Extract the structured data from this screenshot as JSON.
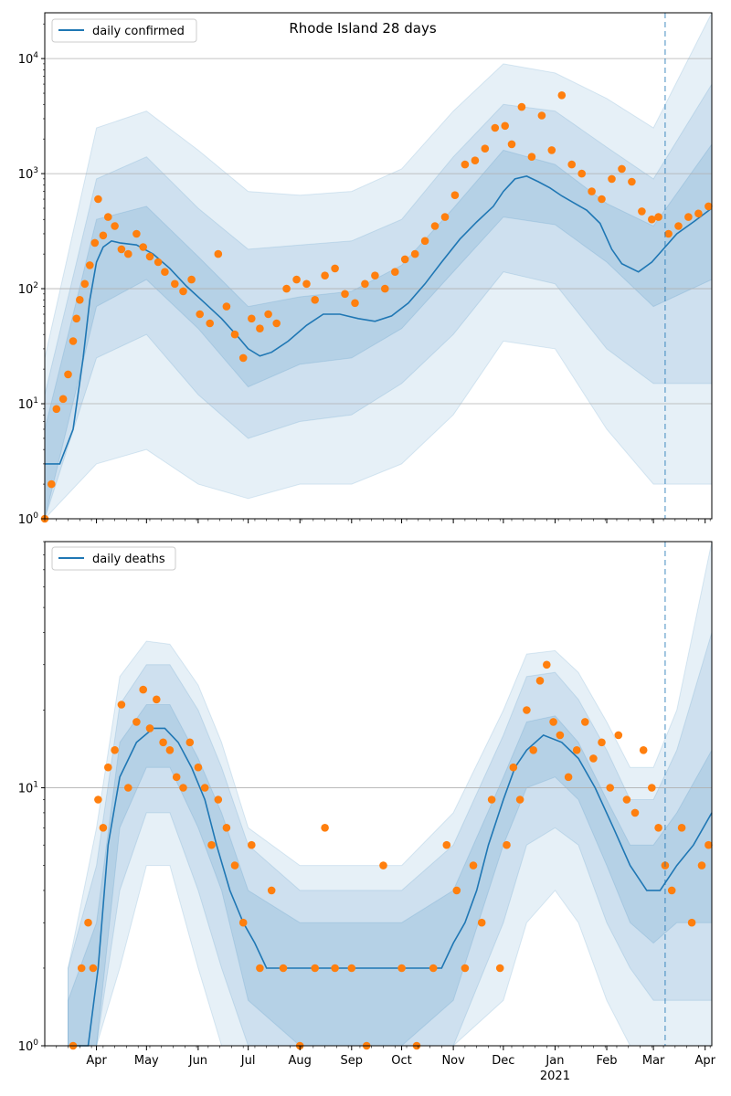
{
  "colors": {
    "line": "#1f77b4",
    "band": "#1f77b4",
    "points": "#ff7f0e",
    "grid": "#b0b0b0",
    "vline": "#1f77b4"
  },
  "chart_data": [
    {
      "type": "line",
      "title": "Rhode Island 28 days",
      "yscale": "log",
      "ylim": [
        1,
        25000
      ],
      "ytick_labels": [
        "10^0",
        "10^1",
        "10^2",
        "10^3",
        "10^4"
      ],
      "xlim": [
        "2020-03-01",
        "2021-04-05"
      ],
      "grid": "horizontal major",
      "legend": {
        "placement": "top-left",
        "entries": [
          "daily confirmed"
        ]
      },
      "forecast_start": "2021-03-08",
      "series": [
        {
          "name": "daily confirmed",
          "kind": "fitted line",
          "x": [
            "2020-03-01",
            "2020-03-10",
            "2020-03-18",
            "2020-03-24",
            "2020-03-28",
            "2020-04-01",
            "2020-04-05",
            "2020-04-10",
            "2020-04-15",
            "2020-04-25",
            "2020-05-05",
            "2020-05-15",
            "2020-05-25",
            "2020-06-05",
            "2020-06-15",
            "2020-06-25",
            "2020-07-01",
            "2020-07-08",
            "2020-07-15",
            "2020-07-25",
            "2020-08-05",
            "2020-08-15",
            "2020-08-25",
            "2020-09-05",
            "2020-09-15",
            "2020-09-25",
            "2020-10-05",
            "2020-10-15",
            "2020-10-25",
            "2020-11-05",
            "2020-11-15",
            "2020-11-25",
            "2020-12-01",
            "2020-12-08",
            "2020-12-15",
            "2020-12-22",
            "2020-12-29",
            "2021-01-05",
            "2021-01-12",
            "2021-01-20",
            "2021-01-28",
            "2021-02-04",
            "2021-02-10",
            "2021-02-20",
            "2021-02-28",
            "2021-03-08",
            "2021-03-15",
            "2021-03-25",
            "2021-04-05"
          ],
          "y": [
            3,
            3,
            6,
            25,
            80,
            170,
            230,
            260,
            250,
            240,
            200,
            150,
            105,
            75,
            55,
            38,
            30,
            26,
            28,
            35,
            48,
            60,
            60,
            55,
            52,
            58,
            75,
            110,
            170,
            270,
            380,
            520,
            700,
            900,
            950,
            850,
            750,
            640,
            560,
            480,
            370,
            220,
            165,
            140,
            170,
            230,
            300,
            380,
            500
          ]
        },
        {
          "name": "daily confirmed (observed)",
          "kind": "scatter",
          "x": [
            "2020-03-01",
            "2020-03-05",
            "2020-03-08",
            "2020-03-12",
            "2020-03-15",
            "2020-03-18",
            "2020-03-20",
            "2020-03-22",
            "2020-03-25",
            "2020-03-28",
            "2020-03-31",
            "2020-04-02",
            "2020-04-05",
            "2020-04-08",
            "2020-04-12",
            "2020-04-16",
            "2020-04-20",
            "2020-04-25",
            "2020-04-29",
            "2020-05-03",
            "2020-05-08",
            "2020-05-12",
            "2020-05-18",
            "2020-05-23",
            "2020-05-28",
            "2020-06-02",
            "2020-06-08",
            "2020-06-13",
            "2020-06-18",
            "2020-06-23",
            "2020-06-28",
            "2020-07-03",
            "2020-07-08",
            "2020-07-13",
            "2020-07-18",
            "2020-07-24",
            "2020-07-30",
            "2020-08-05",
            "2020-08-10",
            "2020-08-16",
            "2020-08-22",
            "2020-08-28",
            "2020-09-03",
            "2020-09-09",
            "2020-09-15",
            "2020-09-21",
            "2020-09-27",
            "2020-10-03",
            "2020-10-09",
            "2020-10-15",
            "2020-10-21",
            "2020-10-27",
            "2020-11-02",
            "2020-11-08",
            "2020-11-14",
            "2020-11-20",
            "2020-11-26",
            "2020-12-02",
            "2020-12-06",
            "2020-12-12",
            "2020-12-18",
            "2020-12-24",
            "2020-12-30",
            "2021-01-05",
            "2021-01-11",
            "2021-01-17",
            "2021-01-23",
            "2021-01-29",
            "2021-02-04",
            "2021-02-10",
            "2021-02-16",
            "2021-02-22",
            "2021-02-28",
            "2021-03-04",
            "2021-03-10",
            "2021-03-16",
            "2021-03-22",
            "2021-03-28",
            "2021-04-03"
          ],
          "y": [
            1,
            2,
            9,
            11,
            18,
            35,
            55,
            80,
            110,
            160,
            250,
            600,
            290,
            420,
            350,
            220,
            200,
            300,
            230,
            190,
            170,
            140,
            110,
            95,
            120,
            60,
            50,
            200,
            70,
            40,
            25,
            55,
            45,
            60,
            50,
            100,
            120,
            110,
            80,
            130,
            150,
            90,
            75,
            110,
            130,
            100,
            140,
            180,
            200,
            260,
            350,
            420,
            650,
            1200,
            1300,
            1650,
            2500,
            2600,
            1800,
            3800,
            1400,
            3200,
            1600,
            4800,
            1200,
            1000,
            700,
            600,
            900,
            1100,
            850,
            470,
            400,
            420,
            300,
            350,
            420,
            450,
            520
          ]
        }
      ],
      "bands": [
        {
          "name": "inner",
          "x": [
            "2020-03-01",
            "2020-04-01",
            "2020-05-01",
            "2020-06-01",
            "2020-07-01",
            "2020-08-01",
            "2020-09-01",
            "2020-10-01",
            "2020-11-01",
            "2020-12-01",
            "2021-01-01",
            "2021-02-01",
            "2021-03-01",
            "2021-04-05"
          ],
          "low": [
            1,
            70,
            120,
            45,
            14,
            22,
            25,
            45,
            140,
            420,
            360,
            170,
            70,
            120
          ],
          "high": [
            6,
            400,
            520,
            190,
            70,
            85,
            95,
            160,
            500,
            1600,
            1200,
            550,
            350,
            1800
          ]
        },
        {
          "name": "middle",
          "x": [
            "2020-03-01",
            "2020-04-01",
            "2020-05-01",
            "2020-06-01",
            "2020-07-01",
            "2020-08-01",
            "2020-09-01",
            "2020-10-01",
            "2020-11-01",
            "2020-12-01",
            "2021-01-01",
            "2021-02-01",
            "2021-03-01",
            "2021-04-05"
          ],
          "low": [
            1,
            25,
            40,
            12,
            5,
            7,
            8,
            15,
            40,
            140,
            110,
            30,
            15,
            15
          ],
          "high": [
            12,
            900,
            1400,
            500,
            220,
            240,
            260,
            400,
            1400,
            4000,
            3500,
            1700,
            900,
            6000
          ]
        },
        {
          "name": "outer",
          "x": [
            "2020-03-01",
            "2020-04-01",
            "2020-05-01",
            "2020-06-01",
            "2020-07-01",
            "2020-08-01",
            "2020-09-01",
            "2020-10-01",
            "2020-11-01",
            "2020-12-01",
            "2021-01-01",
            "2021-02-01",
            "2021-03-01",
            "2021-04-05"
          ],
          "low": [
            1,
            3,
            4,
            2,
            1.5,
            2,
            2,
            3,
            8,
            35,
            30,
            6,
            2,
            2
          ],
          "high": [
            25,
            2500,
            3500,
            1600,
            700,
            650,
            700,
            1100,
            3500,
            9000,
            7500,
            4500,
            2500,
            25000
          ]
        }
      ]
    },
    {
      "type": "line",
      "title": "",
      "yscale": "log",
      "ylim": [
        1,
        90
      ],
      "ytick_labels": [
        "10^0",
        "10^1"
      ],
      "xlim": [
        "2020-03-01",
        "2021-04-05"
      ],
      "x_tick_labels": [
        "Apr",
        "May",
        "Jun",
        "Jul",
        "Aug",
        "Sep",
        "Oct",
        "Nov",
        "Dec",
        "Jan",
        "Feb",
        "Mar",
        "Apr"
      ],
      "x_secondary_label": "2021",
      "grid": "horizontal major",
      "legend": {
        "placement": "top-left",
        "entries": [
          "daily deaths"
        ]
      },
      "forecast_start": "2021-03-08",
      "series": [
        {
          "name": "daily deaths",
          "kind": "fitted line",
          "x": [
            "2020-03-20",
            "2020-03-27",
            "2020-04-02",
            "2020-04-08",
            "2020-04-15",
            "2020-04-25",
            "2020-05-05",
            "2020-05-12",
            "2020-05-20",
            "2020-05-28",
            "2020-06-05",
            "2020-06-12",
            "2020-06-20",
            "2020-06-28",
            "2020-07-05",
            "2020-07-12",
            "2020-07-20",
            "2020-08-01",
            "2020-08-15",
            "2020-09-01",
            "2020-09-15",
            "2020-10-01",
            "2020-10-15",
            "2020-10-25",
            "2020-11-01",
            "2020-11-08",
            "2020-11-15",
            "2020-11-22",
            "2020-12-01",
            "2020-12-08",
            "2020-12-15",
            "2020-12-25",
            "2021-01-05",
            "2021-01-15",
            "2021-01-25",
            "2021-02-05",
            "2021-02-15",
            "2021-02-25",
            "2021-03-05",
            "2021-03-15",
            "2021-03-25",
            "2021-04-05"
          ],
          "y": [
            1,
            1,
            2,
            6,
            11,
            15,
            17,
            17,
            15,
            12,
            9,
            6,
            4,
            3,
            2.5,
            2,
            2,
            2,
            2,
            2,
            2,
            2,
            2,
            2,
            2.5,
            3,
            4,
            6,
            9,
            12,
            14,
            16,
            15,
            13,
            10,
            7,
            5,
            4,
            4,
            5,
            6,
            8
          ]
        },
        {
          "name": "daily deaths (observed)",
          "kind": "scatter",
          "x": [
            "2020-03-18",
            "2020-03-23",
            "2020-03-27",
            "2020-03-30",
            "2020-04-02",
            "2020-04-05",
            "2020-04-08",
            "2020-04-12",
            "2020-04-16",
            "2020-04-20",
            "2020-04-25",
            "2020-04-29",
            "2020-05-03",
            "2020-05-07",
            "2020-05-11",
            "2020-05-15",
            "2020-05-19",
            "2020-05-23",
            "2020-05-27",
            "2020-06-01",
            "2020-06-05",
            "2020-06-09",
            "2020-06-13",
            "2020-06-18",
            "2020-06-23",
            "2020-06-28",
            "2020-07-03",
            "2020-07-08",
            "2020-07-15",
            "2020-07-22",
            "2020-08-01",
            "2020-08-10",
            "2020-08-16",
            "2020-08-22",
            "2020-09-01",
            "2020-09-10",
            "2020-09-20",
            "2020-10-01",
            "2020-10-10",
            "2020-10-20",
            "2020-10-28",
            "2020-11-03",
            "2020-11-08",
            "2020-11-13",
            "2020-11-18",
            "2020-11-24",
            "2020-11-29",
            "2020-12-03",
            "2020-12-07",
            "2020-12-11",
            "2020-12-15",
            "2020-12-19",
            "2020-12-23",
            "2020-12-27",
            "2020-12-31",
            "2021-01-04",
            "2021-01-09",
            "2021-01-14",
            "2021-01-19",
            "2021-01-24",
            "2021-01-29",
            "2021-02-03",
            "2021-02-08",
            "2021-02-13",
            "2021-02-18",
            "2021-02-23",
            "2021-02-28",
            "2021-03-04",
            "2021-03-08",
            "2021-03-12",
            "2021-03-18",
            "2021-03-24",
            "2021-03-30",
            "2021-04-03"
          ],
          "y": [
            1,
            2,
            3,
            2,
            9,
            7,
            12,
            14,
            21,
            10,
            18,
            24,
            17,
            22,
            15,
            14,
            11,
            10,
            15,
            12,
            10,
            6,
            9,
            7,
            5,
            3,
            6,
            2,
            4,
            2,
            1,
            2,
            7,
            2,
            2,
            1,
            5,
            2,
            1,
            2,
            6,
            4,
            2,
            5,
            3,
            9,
            2,
            6,
            12,
            9,
            20,
            14,
            26,
            30,
            18,
            16,
            11,
            14,
            18,
            13,
            15,
            10,
            16,
            9,
            8,
            14,
            10,
            7,
            5,
            4,
            7,
            3,
            5,
            6
          ]
        }
      ],
      "bands": [
        {
          "name": "inner",
          "x": [
            "2020-03-15",
            "2020-04-01",
            "2020-04-15",
            "2020-05-01",
            "2020-05-15",
            "2020-06-01",
            "2020-06-15",
            "2020-07-01",
            "2020-08-01",
            "2020-09-01",
            "2020-10-01",
            "2020-11-01",
            "2020-12-01",
            "2020-12-15",
            "2021-01-01",
            "2021-01-15",
            "2021-02-01",
            "2021-02-15",
            "2021-03-01",
            "2021-03-15",
            "2021-04-05"
          ],
          "low": [
            1,
            1,
            7,
            12,
            12,
            7,
            4,
            1.5,
            1,
            1,
            1,
            1.5,
            6,
            10,
            11,
            9,
            5,
            3,
            2.5,
            3,
            3
          ],
          "high": [
            1.5,
            3,
            15,
            21,
            21,
            13,
            8,
            4,
            3,
            3,
            3,
            4,
            11,
            18,
            19,
            15,
            9,
            6,
            6,
            8,
            14
          ]
        },
        {
          "name": "middle",
          "x": [
            "2020-03-15",
            "2020-04-01",
            "2020-04-15",
            "2020-05-01",
            "2020-05-15",
            "2020-06-01",
            "2020-06-15",
            "2020-07-01",
            "2020-08-01",
            "2020-09-01",
            "2020-10-01",
            "2020-11-01",
            "2020-12-01",
            "2020-12-15",
            "2021-01-01",
            "2021-01-15",
            "2021-02-01",
            "2021-02-15",
            "2021-03-01",
            "2021-03-15",
            "2021-04-05"
          ],
          "low": [
            1,
            1,
            4,
            8,
            8,
            4,
            2,
            1,
            1,
            1,
            1,
            1,
            3,
            6,
            7,
            6,
            3,
            2,
            1.5,
            1.5,
            1.5
          ],
          "high": [
            2,
            5,
            21,
            30,
            30,
            20,
            12,
            6,
            4,
            4,
            4,
            6,
            16,
            27,
            28,
            22,
            14,
            9,
            9,
            14,
            40
          ]
        },
        {
          "name": "outer",
          "x": [
            "2020-03-15",
            "2020-04-01",
            "2020-04-15",
            "2020-05-01",
            "2020-05-15",
            "2020-06-01",
            "2020-06-15",
            "2020-07-01",
            "2020-08-01",
            "2020-09-01",
            "2020-10-01",
            "2020-11-01",
            "2020-12-01",
            "2020-12-15",
            "2021-01-01",
            "2021-01-15",
            "2021-02-01",
            "2021-02-15",
            "2021-03-01",
            "2021-03-15",
            "2021-04-05"
          ],
          "low": [
            1,
            1,
            2,
            5,
            5,
            2,
            1,
            1,
            1,
            1,
            1,
            1,
            1.5,
            3,
            4,
            3,
            1.5,
            1,
            1,
            1,
            1
          ],
          "high": [
            2,
            7,
            27,
            37,
            36,
            25,
            15,
            7,
            5,
            5,
            5,
            8,
            20,
            33,
            34,
            28,
            18,
            12,
            12,
            20,
            90
          ]
        }
      ]
    }
  ]
}
